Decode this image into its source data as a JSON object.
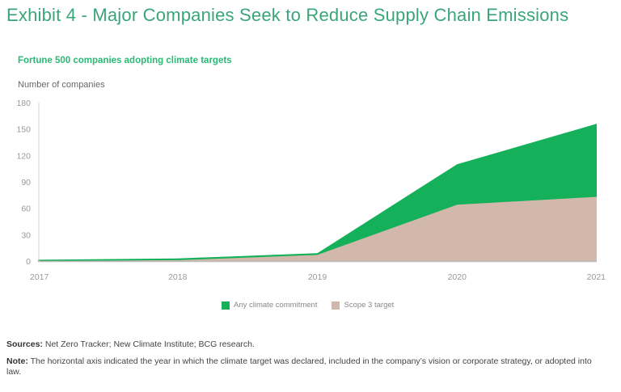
{
  "title": "Exhibit 4 - Major Companies Seek to Reduce Supply Chain Emissions",
  "footer": {
    "sources_label": "Sources:",
    "sources_text": " Net Zero Tracker; New Climate Institute; BCG research.",
    "note_label": "Note:",
    "note_text": " The horizontal axis indicated the year in which the climate target was declared, included in the company’s vision or corporate strategy, or adopted into law."
  },
  "chart_data": {
    "type": "area",
    "title": "Fortune 500 companies adopting climate targets",
    "ylabel": "Number of companies",
    "xlabel": "",
    "x": [
      "2017",
      "2018",
      "2019",
      "2020",
      "2021"
    ],
    "ylim": [
      0,
      180
    ],
    "yticks": [
      0,
      30,
      60,
      90,
      120,
      150,
      180
    ],
    "grid": false,
    "legend": "bottom-center",
    "series": [
      {
        "name": "Any climate commitment",
        "color": "#14b05a",
        "values": [
          1.5,
          3,
          9,
          110,
          156
        ]
      },
      {
        "name": "Scope 3 target",
        "color": "#d2b8aa",
        "values": [
          0,
          1,
          7,
          64,
          73
        ]
      }
    ]
  }
}
